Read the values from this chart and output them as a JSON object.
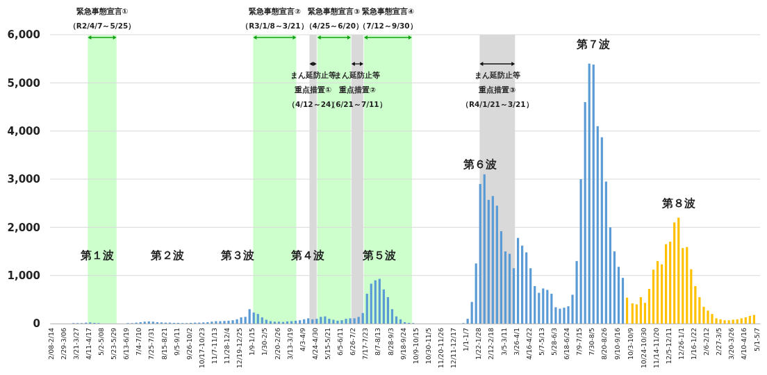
{
  "chart_data": {
    "type": "bar",
    "x": [
      "2020-02-08",
      "2020-02-15",
      "2020-02-22",
      "2020-02-29",
      "2020-03-07",
      "2020-03-14",
      "2020-03-21",
      "2020-03-28",
      "2020-04-04",
      "2020-04-11",
      "2020-04-18",
      "2020-04-25",
      "2020-05-02",
      "2020-05-09",
      "2020-05-16",
      "2020-05-23",
      "2020-05-30",
      "2020-06-06",
      "2020-06-13",
      "2020-06-20",
      "2020-06-27",
      "2020-07-04",
      "2020-07-11",
      "2020-07-18",
      "2020-07-25",
      "2020-08-01",
      "2020-08-08",
      "2020-08-15",
      "2020-08-22",
      "2020-08-29",
      "2020-09-05",
      "2020-09-12",
      "2020-09-19",
      "2020-09-26",
      "2020-10-03",
      "2020-10-10",
      "2020-10-17",
      "2020-10-24",
      "2020-10-31",
      "2020-11-07",
      "2020-11-14",
      "2020-11-21",
      "2020-11-28",
      "2020-12-05",
      "2020-12-12",
      "2020-12-19",
      "2020-12-26",
      "2021-01-02",
      "2021-01-09",
      "2021-01-16",
      "2021-01-23",
      "2021-01-30",
      "2021-02-06",
      "2021-02-13",
      "2021-02-20",
      "2021-02-27",
      "2021-03-06",
      "2021-03-13",
      "2021-03-20",
      "2021-03-27",
      "2021-04-03",
      "2021-04-10",
      "2021-04-17",
      "2021-04-24",
      "2021-05-01",
      "2021-05-08",
      "2021-05-15",
      "2021-05-22",
      "2021-05-29",
      "2021-06-05",
      "2021-06-12",
      "2021-06-19",
      "2021-06-26",
      "2021-07-03",
      "2021-07-10",
      "2021-07-17",
      "2021-07-24",
      "2021-07-31",
      "2021-08-07",
      "2021-08-14",
      "2021-08-21",
      "2021-08-28",
      "2021-09-04",
      "2021-09-11",
      "2021-09-18",
      "2021-09-25",
      "2021-10-02",
      "2021-10-09",
      "2021-10-16",
      "2021-10-23",
      "2021-10-30",
      "2021-11-06",
      "2021-11-13",
      "2021-11-20",
      "2021-11-27",
      "2021-12-04",
      "2021-12-11",
      "2021-12-18",
      "2021-12-25",
      "2022-01-01",
      "2022-01-08",
      "2022-01-15",
      "2022-01-22",
      "2022-01-29",
      "2022-02-05",
      "2022-02-12",
      "2022-02-19",
      "2022-02-26",
      "2022-03-05",
      "2022-03-12",
      "2022-03-19",
      "2022-03-26",
      "2022-04-02",
      "2022-04-09",
      "2022-04-16",
      "2022-04-23",
      "2022-04-30",
      "2022-05-07",
      "2022-05-14",
      "2022-05-21",
      "2022-05-28",
      "2022-06-04",
      "2022-06-11",
      "2022-06-18",
      "2022-06-25",
      "2022-07-02",
      "2022-07-09",
      "2022-07-16",
      "2022-07-23",
      "2022-07-30",
      "2022-08-06",
      "2022-08-13",
      "2022-08-20",
      "2022-08-27",
      "2022-09-03",
      "2022-09-10",
      "2022-09-17",
      "2022-09-24",
      "2022-10-03",
      "2022-10-10",
      "2022-10-17",
      "2022-10-24",
      "2022-10-31",
      "2022-11-07",
      "2022-11-14",
      "2022-11-21",
      "2022-11-28",
      "2022-12-05",
      "2022-12-12",
      "2022-12-19",
      "2022-12-26",
      "2023-01-02",
      "2023-01-09",
      "2023-01-16",
      "2023-01-23",
      "2023-01-30",
      "2023-02-06",
      "2023-02-13",
      "2023-02-20",
      "2023-02-27",
      "2023-03-06",
      "2023-03-13",
      "2023-03-20",
      "2023-03-27",
      "2023-04-03",
      "2023-04-10",
      "2023-04-17",
      "2023-04-24"
    ],
    "values": [
      0,
      0,
      0,
      0,
      0,
      10,
      10,
      10,
      20,
      25,
      15,
      10,
      0,
      0,
      0,
      0,
      0,
      0,
      10,
      10,
      20,
      30,
      40,
      45,
      40,
      30,
      25,
      20,
      20,
      15,
      15,
      10,
      10,
      15,
      20,
      20,
      25,
      30,
      40,
      50,
      50,
      55,
      60,
      70,
      90,
      130,
      140,
      300,
      230,
      200,
      130,
      80,
      50,
      40,
      40,
      35,
      45,
      50,
      60,
      70,
      90,
      110,
      90,
      100,
      140,
      150,
      100,
      80,
      60,
      70,
      100,
      110,
      110,
      140,
      220,
      620,
      830,
      900,
      930,
      710,
      550,
      300,
      150,
      90,
      30,
      15,
      10,
      0,
      0,
      0,
      0,
      0,
      0,
      0,
      0,
      0,
      0,
      0,
      10,
      100,
      450,
      1250,
      2900,
      3100,
      2570,
      2650,
      2450,
      1920,
      1500,
      1450,
      1150,
      1780,
      1620,
      1480,
      1150,
      780,
      640,
      730,
      700,
      620,
      340,
      310,
      330,
      360,
      600,
      1300,
      3000,
      4600,
      5400,
      5380,
      4100,
      3870,
      2950,
      2000,
      1500,
      1180,
      950,
      540,
      420,
      400,
      550,
      430,
      720,
      1120,
      1300,
      1230,
      1650,
      1700,
      2100,
      2200,
      1570,
      1590,
      1130,
      780,
      550,
      350,
      270,
      200,
      110,
      90,
      70,
      70,
      80,
      90,
      110,
      130,
      160,
      180
    ],
    "colors": [
      "#5b9bd5",
      "#5b9bd5",
      "#5b9bd5",
      "#5b9bd5",
      "#5b9bd5",
      "#5b9bd5",
      "#5b9bd5",
      "#5b9bd5",
      "#5b9bd5",
      "#5b9bd5",
      "#5b9bd5",
      "#5b9bd5",
      "#5b9bd5",
      "#5b9bd5",
      "#5b9bd5",
      "#5b9bd5",
      "#5b9bd5",
      "#5b9bd5",
      "#5b9bd5",
      "#5b9bd5",
      "#5b9bd5",
      "#5b9bd5",
      "#5b9bd5",
      "#5b9bd5",
      "#5b9bd5",
      "#5b9bd5",
      "#5b9bd5",
      "#5b9bd5",
      "#5b9bd5",
      "#5b9bd5",
      "#5b9bd5",
      "#5b9bd5",
      "#5b9bd5",
      "#5b9bd5",
      "#5b9bd5",
      "#5b9bd5",
      "#5b9bd5",
      "#5b9bd5",
      "#5b9bd5",
      "#5b9bd5",
      "#5b9bd5",
      "#5b9bd5",
      "#5b9bd5",
      "#5b9bd5",
      "#5b9bd5",
      "#5b9bd5",
      "#5b9bd5",
      "#5b9bd5",
      "#5b9bd5",
      "#5b9bd5",
      "#5b9bd5",
      "#5b9bd5",
      "#5b9bd5",
      "#5b9bd5",
      "#5b9bd5",
      "#5b9bd5",
      "#5b9bd5",
      "#5b9bd5",
      "#5b9bd5",
      "#5b9bd5",
      "#5b9bd5",
      "#5b9bd5",
      "#5b9bd5",
      "#5b9bd5",
      "#5b9bd5",
      "#5b9bd5",
      "#5b9bd5",
      "#5b9bd5",
      "#5b9bd5",
      "#5b9bd5",
      "#5b9bd5",
      "#5b9bd5",
      "#5b9bd5",
      "#5b9bd5",
      "#5b9bd5",
      "#5b9bd5",
      "#5b9bd5",
      "#5b9bd5",
      "#5b9bd5",
      "#5b9bd5",
      "#5b9bd5",
      "#5b9bd5",
      "#5b9bd5",
      "#5b9bd5",
      "#5b9bd5",
      "#5b9bd5",
      "#5b9bd5",
      "#5b9bd5",
      "#5b9bd5",
      "#5b9bd5",
      "#5b9bd5",
      "#5b9bd5",
      "#5b9bd5",
      "#5b9bd5",
      "#5b9bd5",
      "#5b9bd5",
      "#5b9bd5",
      "#5b9bd5",
      "#5b9bd5",
      "#5b9bd5",
      "#5b9bd5",
      "#5b9bd5",
      "#5b9bd5",
      "#5b9bd5",
      "#5b9bd5",
      "#5b9bd5",
      "#5b9bd5",
      "#5b9bd5",
      "#5b9bd5",
      "#5b9bd5",
      "#5b9bd5",
      "#5b9bd5",
      "#5b9bd5",
      "#5b9bd5",
      "#5b9bd5",
      "#5b9bd5",
      "#5b9bd5",
      "#5b9bd5",
      "#5b9bd5",
      "#5b9bd5",
      "#5b9bd5",
      "#5b9bd5",
      "#5b9bd5",
      "#5b9bd5",
      "#5b9bd5",
      "#5b9bd5",
      "#5b9bd5",
      "#5b9bd5",
      "#5b9bd5",
      "#5b9bd5",
      "#5b9bd5",
      "#5b9bd5",
      "#5b9bd5",
      "#5b9bd5",
      "#5b9bd5",
      "#5b9bd5",
      "#5b9bd5",
      "#ffc000",
      "#ffc000",
      "#ffc000",
      "#ffc000",
      "#ffc000",
      "#ffc000",
      "#ffc000",
      "#ffc000",
      "#ffc000",
      "#ffc000",
      "#ffc000",
      "#ffc000",
      "#ffc000",
      "#ffc000",
      "#ffc000",
      "#ffc000",
      "#ffc000",
      "#ffc000",
      "#ffc000",
      "#ffc000",
      "#ffc000",
      "#ffc000",
      "#ffc000",
      "#ffc000",
      "#ffc000",
      "#ffc000",
      "#ffc000",
      "#ffc000",
      "#ffc000",
      "#ffc000",
      "#ffc000"
    ],
    "xlim": [
      "2020-02-04",
      "2023-05-04"
    ],
    "xticks": [
      {
        "value": "2020-02-08",
        "label": "2/08-2/14"
      },
      {
        "value": "2020-02-29",
        "label": "2/29-3/06"
      },
      {
        "value": "2020-03-21",
        "label": "3/21-3/27"
      },
      {
        "value": "2020-04-11",
        "label": "4/11-4/17"
      },
      {
        "value": "2020-05-02",
        "label": "5/2-5/08"
      },
      {
        "value": "2020-05-23",
        "label": "5/23-5/29"
      },
      {
        "value": "2020-06-13",
        "label": "6/13-6/19"
      },
      {
        "value": "2020-07-04",
        "label": "7/4-7/10"
      },
      {
        "value": "2020-07-25",
        "label": "7/25-7/31"
      },
      {
        "value": "2020-08-15",
        "label": "8/15-8/21"
      },
      {
        "value": "2020-09-05",
        "label": "9/5-9/11"
      },
      {
        "value": "2020-09-26",
        "label": "9/26-10/2"
      },
      {
        "value": "2020-10-17",
        "label": "10/17-10/23"
      },
      {
        "value": "2020-11-07",
        "label": "11/7-11/13"
      },
      {
        "value": "2020-11-28",
        "label": "11/28-12/4"
      },
      {
        "value": "2020-12-19",
        "label": "12/19-12/25"
      },
      {
        "value": "2021-01-09",
        "label": "1/9-1/15"
      },
      {
        "value": "2021-01-30",
        "label": "1/30-2/5"
      },
      {
        "value": "2021-02-20",
        "label": "2/20-2/26"
      },
      {
        "value": "2021-03-13",
        "label": "3/13-3/19"
      },
      {
        "value": "2021-04-03",
        "label": "4/3-4/9"
      },
      {
        "value": "2021-04-24",
        "label": "4/24-4/30"
      },
      {
        "value": "2021-05-15",
        "label": "5/15-5/21"
      },
      {
        "value": "2021-06-05",
        "label": "6/5-6/11"
      },
      {
        "value": "2021-06-26",
        "label": "6/26-7/2"
      },
      {
        "value": "2021-07-17",
        "label": "7/17-7/23"
      },
      {
        "value": "2021-08-07",
        "label": "8/7-8/13"
      },
      {
        "value": "2021-08-28",
        "label": "8/28-9/3"
      },
      {
        "value": "2021-09-18",
        "label": "9/18-9/24"
      },
      {
        "value": "2021-10-09",
        "label": "10/9-10/15"
      },
      {
        "value": "2021-10-30",
        "label": "10/30-11/5"
      },
      {
        "value": "2021-11-20",
        "label": "11/20-11/26"
      },
      {
        "value": "2021-12-11",
        "label": "12/11-12/17"
      },
      {
        "value": "2022-01-01",
        "label": "1/1-1/7"
      },
      {
        "value": "2022-01-22",
        "label": "1/22-1/28"
      },
      {
        "value": "2022-02-12",
        "label": "2/12-2/18"
      },
      {
        "value": "2022-03-05",
        "label": "3/5-3/11"
      },
      {
        "value": "2022-03-26",
        "label": "3/26-4/1"
      },
      {
        "value": "2022-04-16",
        "label": "4/16-4/22"
      },
      {
        "value": "2022-05-07",
        "label": "5/7-5/13"
      },
      {
        "value": "2022-05-28",
        "label": "5/28-6/3"
      },
      {
        "value": "2022-06-18",
        "label": "6/18-6/24"
      },
      {
        "value": "2022-07-09",
        "label": "7/9-7/15"
      },
      {
        "value": "2022-07-30",
        "label": "7/30-8/5"
      },
      {
        "value": "2022-08-20",
        "label": "8/20-8/26"
      },
      {
        "value": "2022-09-10",
        "label": "9/10-9/16"
      },
      {
        "value": "2022-10-03",
        "label": "10/3-10/9"
      },
      {
        "value": "2022-10-24",
        "label": "10/24-10/30"
      },
      {
        "value": "2022-11-14",
        "label": "11/14-11/20"
      },
      {
        "value": "2022-12-05",
        "label": "12/5-12/11"
      },
      {
        "value": "2022-12-26",
        "label": "12/26-1/1"
      },
      {
        "value": "2023-01-16",
        "label": "1/16-1/22"
      },
      {
        "value": "2023-02-06",
        "label": "2/6-2/12"
      },
      {
        "value": "2023-02-27",
        "label": "2/27-3/5"
      },
      {
        "value": "2023-03-20",
        "label": "3/20-3/26"
      },
      {
        "value": "2023-04-10",
        "label": "4/10-4/16"
      },
      {
        "value": "2023-05-01",
        "label": "5/1-5/7"
      }
    ],
    "ylim": [
      0,
      6000
    ],
    "yticks": [
      0,
      {
        "value": 1000,
        "label": "1,000"
      },
      {
        "value": 2000,
        "label": "2,000"
      },
      {
        "value": 3000,
        "label": "3,000"
      },
      {
        "value": 4000,
        "label": "4,000"
      },
      {
        "value": 5000,
        "label": "5,000"
      },
      {
        "value": 6000,
        "label": "6,000"
      }
    ],
    "grid": "y",
    "bands": [
      {
        "axis": "x",
        "from": "2020-04-07",
        "to": "2020-05-25",
        "label": "緊急事態宣言①（R2/4/7～5/25）",
        "color": "#ccffcc"
      },
      {
        "axis": "x",
        "from": "2021-01-08",
        "to": "2021-03-21",
        "label": "緊急事態宣言②（R3/1/8～3/21）",
        "color": "#ccffcc"
      },
      {
        "axis": "x",
        "from": "2021-04-12",
        "to": "2021-04-24",
        "label": "まん延防止等重点措置①（4/12～24）",
        "color": "#d9d9d9"
      },
      {
        "axis": "x",
        "from": "2021-04-25",
        "to": "2021-06-20",
        "label": "緊急事態宣言③（4/25～6/20）",
        "color": "#ccffcc"
      },
      {
        "axis": "x",
        "from": "2021-06-21",
        "to": "2021-07-11",
        "label": "まん延防止等重点措置②（6/21～7/11）",
        "color": "#d9d9d9"
      },
      {
        "axis": "x",
        "from": "2021-07-12",
        "to": "2021-09-30",
        "label": "緊急事態宣言④（7/12～9/30）",
        "color": "#ccffcc"
      },
      {
        "axis": "x",
        "from": "2022-01-21",
        "to": "2022-03-21",
        "label": "まん延防止等重点措置③（R4/1/21～3/21）",
        "color": "#d9d9d9"
      }
    ],
    "annotations": [
      "第１波",
      "第２波",
      "第３波",
      "第４波",
      {
        "text": "第５波",
        "x": "2021-08-07",
        "y": 930
      },
      {
        "text": "第６波",
        "x": "2022-01-22",
        "y": 2900
      },
      {
        "text": "第７波",
        "x": "2022-07-30",
        "y": 5400
      },
      {
        "text": "第８波",
        "x": "2022-12-19",
        "y": 2100
      }
    ]
  }
}
